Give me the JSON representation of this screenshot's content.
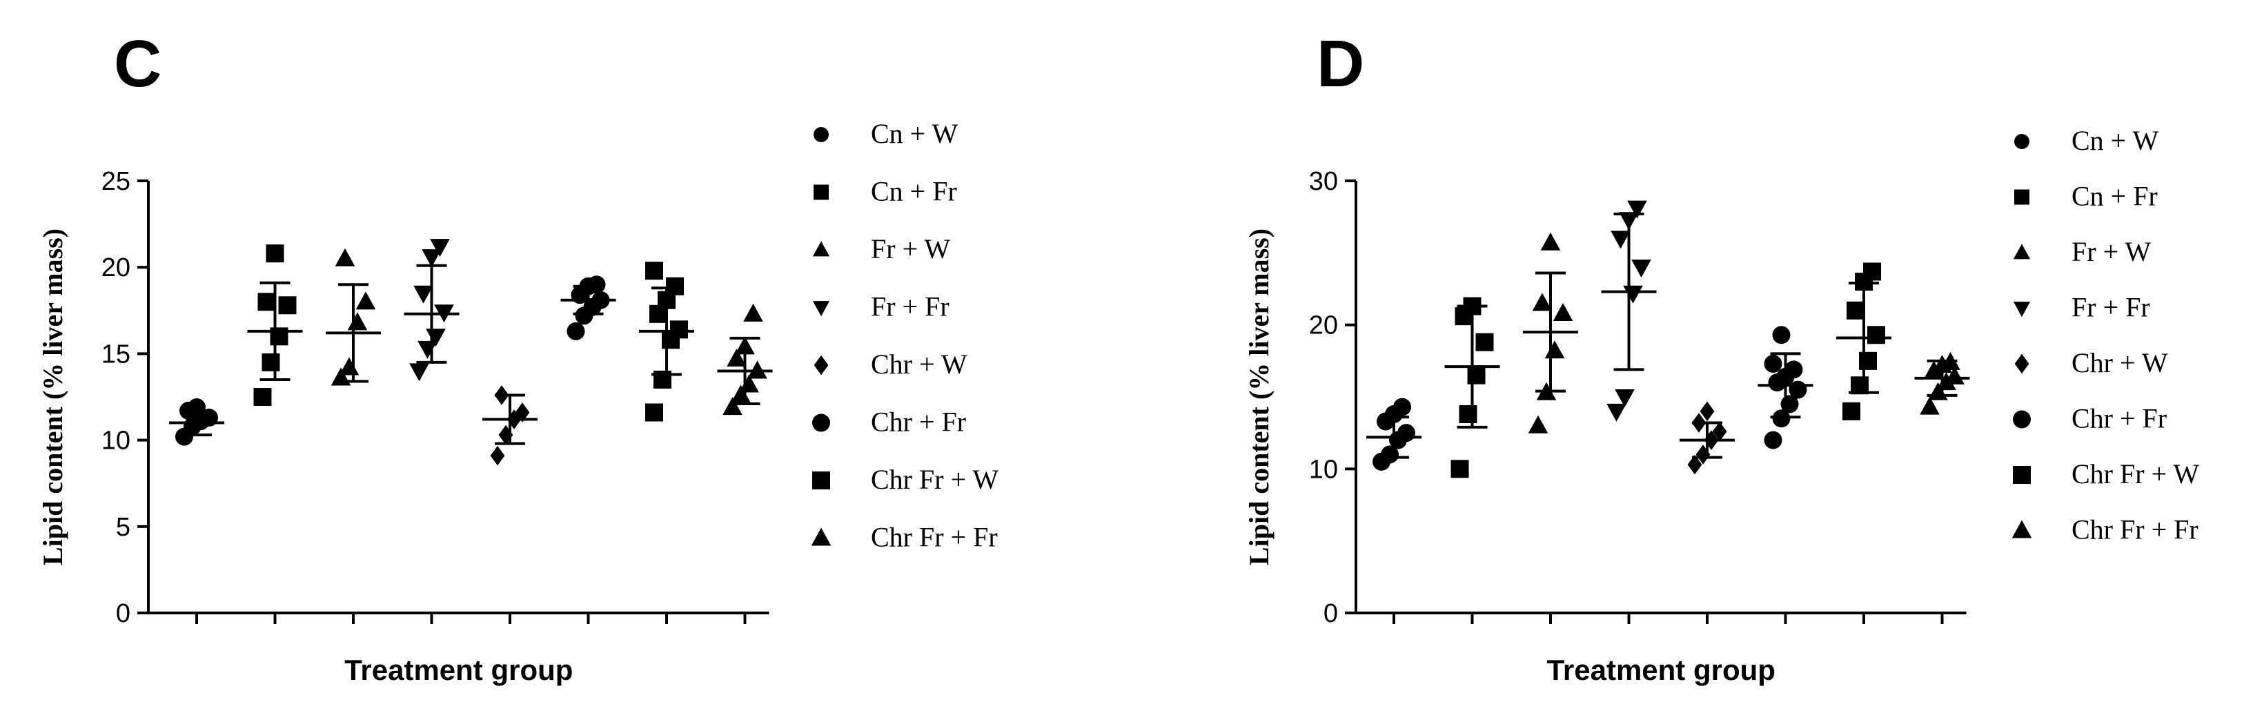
{
  "chart_data": [
    {
      "panel": "C",
      "type": "scatter",
      "xlabel": "Treatment group",
      "ylabel": "Lipid content (% liver mass)",
      "ylim": [
        0,
        25
      ],
      "yticks": [
        0,
        5,
        10,
        15,
        20,
        25
      ],
      "grid": false,
      "legend_position": "right",
      "series": [
        {
          "name": "Cn + W",
          "marker": "circle",
          "mean": 11.0,
          "sd": 0.7,
          "values": [
            10.2,
            10.8,
            11.1,
            11.3,
            11.7,
            11.9
          ]
        },
        {
          "name": "Cn + Fr",
          "marker": "square",
          "mean": 16.3,
          "sd": 2.8,
          "values": [
            12.5,
            14.5,
            16.0,
            17.8,
            18.0,
            20.8
          ]
        },
        {
          "name": "Fr + W",
          "marker": "triangle-up",
          "mean": 16.2,
          "sd": 2.8,
          "values": [
            13.6,
            14.2,
            16.8,
            18.0,
            20.5
          ]
        },
        {
          "name": "Fr + Fr",
          "marker": "triangle-down",
          "mean": 17.3,
          "sd": 2.8,
          "values": [
            14.0,
            15.3,
            16.0,
            17.4,
            18.5,
            20.6,
            21.2
          ]
        },
        {
          "name": "Chr + W",
          "marker": "diamond",
          "mean": 11.2,
          "sd": 1.4,
          "values": [
            9.1,
            10.3,
            11.2,
            11.6,
            12.6
          ]
        },
        {
          "name": "Chr + Fr",
          "marker": "circle",
          "mean": 18.1,
          "sd": 0.8,
          "values": [
            16.3,
            17.2,
            17.7,
            18.1,
            18.4,
            18.9,
            19.0
          ]
        },
        {
          "name": "Chr Fr + W",
          "marker": "square",
          "mean": 16.3,
          "sd": 2.5,
          "values": [
            11.6,
            13.5,
            15.8,
            16.4,
            17.3,
            18.1,
            18.9,
            19.8
          ]
        },
        {
          "name": "Chr Fr + Fr",
          "marker": "triangle-up",
          "mean": 14.0,
          "sd": 1.9,
          "values": [
            11.9,
            12.6,
            13.2,
            14.0,
            14.7,
            15.4,
            17.3
          ]
        }
      ]
    },
    {
      "panel": "D",
      "type": "scatter",
      "xlabel": "Treatment group",
      "ylabel": "Lipid content (% liver mass)",
      "ylim": [
        0,
        30
      ],
      "yticks": [
        0,
        10,
        20,
        30
      ],
      "grid": false,
      "legend_position": "right",
      "series": [
        {
          "name": "Cn + W",
          "marker": "circle",
          "mean": 12.2,
          "sd": 1.4,
          "values": [
            10.5,
            11.0,
            12.0,
            12.5,
            13.3,
            13.8,
            14.3
          ]
        },
        {
          "name": "Cn + Fr",
          "marker": "square",
          "mean": 17.1,
          "sd": 4.2,
          "values": [
            10.0,
            13.8,
            16.5,
            18.8,
            20.6,
            21.3
          ]
        },
        {
          "name": "Fr + W",
          "marker": "triangle-up",
          "mean": 19.5,
          "sd": 4.1,
          "values": [
            13.0,
            15.3,
            18.2,
            20.8,
            21.5,
            25.7
          ]
        },
        {
          "name": "Fr + Fr",
          "marker": "triangle-down",
          "mean": 22.3,
          "sd": 5.4,
          "values": [
            14.0,
            15.0,
            22.2,
            24.0,
            26.0,
            27.3,
            28.1
          ]
        },
        {
          "name": "Chr + W",
          "marker": "diamond",
          "mean": 12.0,
          "sd": 1.2,
          "values": [
            10.3,
            11.0,
            12.0,
            12.6,
            13.2,
            14.0
          ]
        },
        {
          "name": "Chr + Fr",
          "marker": "circle",
          "mean": 15.8,
          "sd": 2.2,
          "values": [
            12.0,
            13.5,
            14.5,
            15.5,
            16.0,
            16.4,
            16.9,
            17.3,
            19.3
          ]
        },
        {
          "name": "Chr Fr + W",
          "marker": "square",
          "mean": 19.1,
          "sd": 3.8,
          "values": [
            14.0,
            15.8,
            17.5,
            19.3,
            21.0,
            23.0,
            23.7
          ]
        },
        {
          "name": "Chr Fr + Fr",
          "marker": "triangle-up",
          "mean": 16.3,
          "sd": 1.2,
          "values": [
            14.3,
            15.3,
            16.0,
            16.4,
            16.8,
            17.2,
            17.4
          ]
        }
      ]
    }
  ]
}
